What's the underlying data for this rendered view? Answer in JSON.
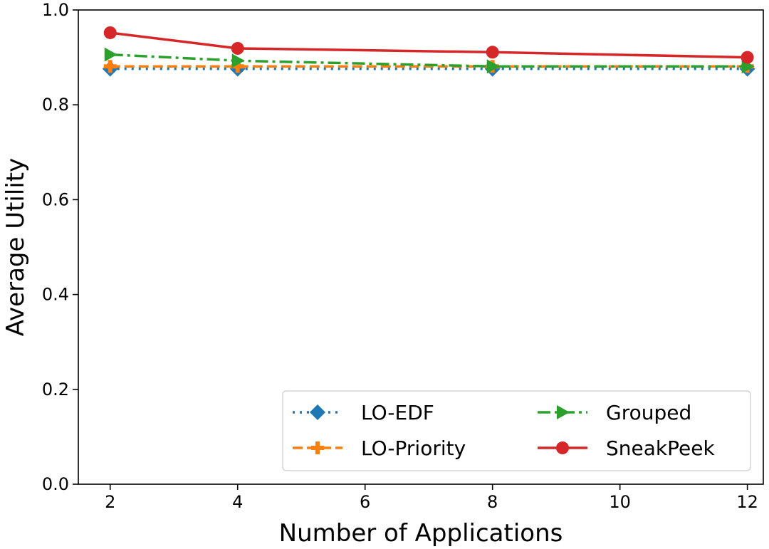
{
  "chart_data": {
    "type": "line",
    "title": "",
    "xlabel": "Number of Applications",
    "ylabel": "Average Utility",
    "xlim": [
      1.5,
      12.25
    ],
    "ylim": [
      0.0,
      1.0
    ],
    "x_ticks": [
      2,
      4,
      6,
      8,
      10,
      12
    ],
    "y_ticks": [
      0.0,
      0.2,
      0.4,
      0.6,
      0.8,
      1.0
    ],
    "x_tick_labels": [
      "2",
      "4",
      "6",
      "8",
      "10",
      "12"
    ],
    "y_tick_labels": [
      "0.0",
      "0.2",
      "0.4",
      "0.6",
      "0.8",
      "1.0"
    ],
    "grid": false,
    "legend_position": "lower-right",
    "x": [
      2,
      4,
      8,
      12
    ],
    "series": [
      {
        "name": "LO-EDF",
        "values": [
          0.876,
          0.876,
          0.876,
          0.876
        ],
        "color": "#1f77b4",
        "marker": "diamond",
        "dash": "dotted"
      },
      {
        "name": "LO-Priority",
        "values": [
          0.881,
          0.881,
          0.881,
          0.881
        ],
        "color": "#ff7f0e",
        "marker": "plus",
        "dash": "dashed"
      },
      {
        "name": "Grouped",
        "values": [
          0.906,
          0.893,
          0.881,
          0.881
        ],
        "color": "#2ca02c",
        "marker": "triangle-right",
        "dash": "dashdot"
      },
      {
        "name": "SneakPeek",
        "values": [
          0.952,
          0.919,
          0.911,
          0.9
        ],
        "color": "#d62728",
        "marker": "circle",
        "dash": "solid"
      }
    ]
  }
}
